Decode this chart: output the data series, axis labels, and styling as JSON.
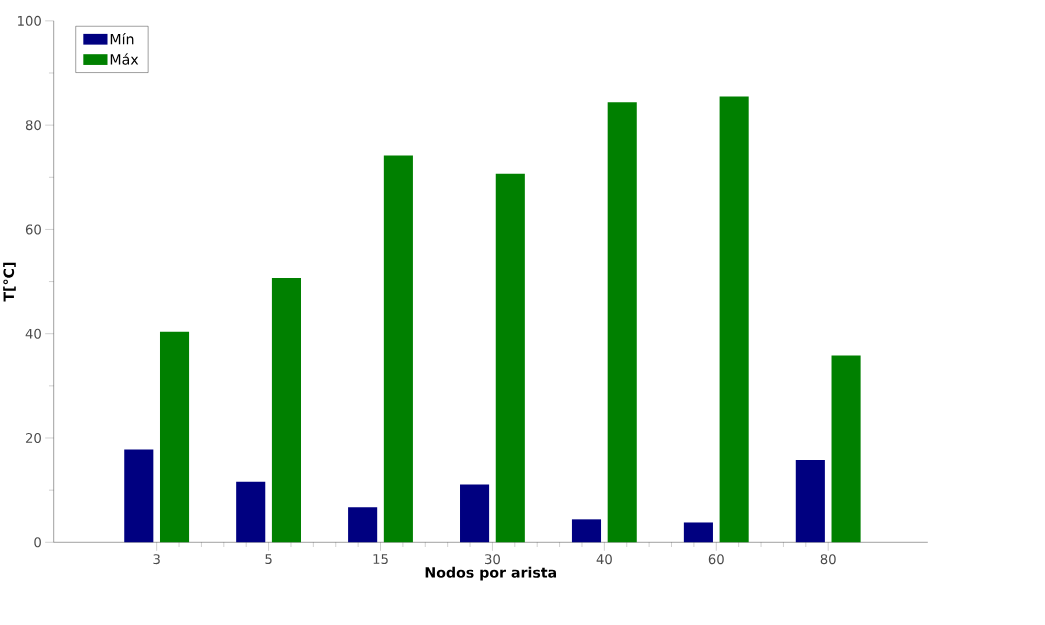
{
  "chart_data": {
    "type": "bar",
    "xlabel": "Nodos por arista",
    "ylabel": "T[°C]",
    "categories": [
      "3",
      "5",
      "15",
      "30",
      "40",
      "60",
      "80"
    ],
    "series": [
      {
        "name": "Mín",
        "color": "#000080",
        "values": [
          17.8,
          11.6,
          6.7,
          11.1,
          4.4,
          3.8,
          15.8
        ]
      },
      {
        "name": "Máx",
        "color": "#008000",
        "values": [
          40.4,
          50.7,
          74.2,
          70.7,
          84.4,
          85.5,
          35.8
        ]
      }
    ],
    "ylim": [
      0,
      100
    ],
    "yticks": [
      0,
      20,
      40,
      60,
      80,
      100
    ],
    "grid": false,
    "legend": "top left"
  }
}
